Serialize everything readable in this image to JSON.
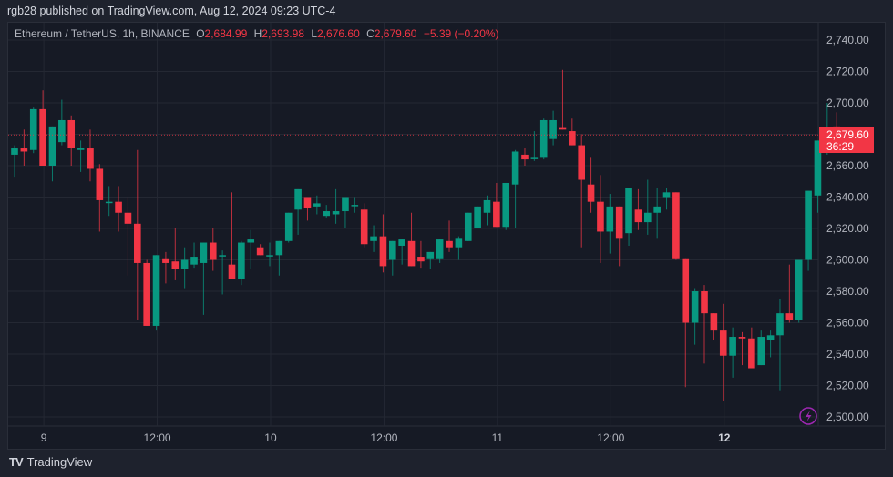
{
  "publish_line": "rgb28 published on TradingView.com, Aug 12, 2024 09:23 UTC-4",
  "legend": {
    "symbol": "Ethereum / TetherUS, 1h, BINANCE",
    "o_label": "O",
    "o": "2,684.99",
    "h_label": "H",
    "h": "2,693.98",
    "l_label": "L",
    "l": "2,676.60",
    "c_label": "C",
    "c": "2,679.60",
    "change": "−5.39 (−0.20%)"
  },
  "price_label": {
    "price": "2,679.60",
    "countdown": "36:29"
  },
  "footer": {
    "brand": "TradingView",
    "logo": "TV"
  },
  "colors": {
    "up": "#089981",
    "down": "#f23645",
    "bg": "#161a25",
    "grid": "#242833",
    "text": "#b2b5be",
    "accent": "#9c27b0"
  },
  "chart_data": {
    "type": "candlestick",
    "title": "Ethereum / TetherUS, 1h, BINANCE",
    "xlabel": "",
    "ylabel": "",
    "ylim": [
      2495,
      2750
    ],
    "y_ticks": [
      2740,
      2720,
      2700,
      2680,
      2660,
      2640,
      2620,
      2600,
      2580,
      2560,
      2540,
      2520,
      2500
    ],
    "y_tick_labels": [
      "2,740.00",
      "2,720.00",
      "2,700.00",
      "2,680.00",
      "2,660.00",
      "2,640.00",
      "2,620.00",
      "2,600.00",
      "2,580.00",
      "2,560.00",
      "2,540.00",
      "2,520.00",
      "2,500.00"
    ],
    "x_tick_labels": [
      {
        "label": "9",
        "index": 3
      },
      {
        "label": "12:00",
        "index": 15
      },
      {
        "label": "10",
        "index": 27
      },
      {
        "label": "12:00",
        "index": 39
      },
      {
        "label": "11",
        "index": 51
      },
      {
        "label": "12:00",
        "index": 63
      },
      {
        "label": "12",
        "index": 75,
        "bold": true
      }
    ],
    "current_price_line": 2679.6,
    "candles": [
      [
        2667,
        2673,
        2653,
        2671
      ],
      [
        2671,
        2683,
        2660,
        2669
      ],
      [
        2670,
        2697,
        2668,
        2696
      ],
      [
        2696,
        2708,
        2660,
        2660
      ],
      [
        2660,
        2680,
        2650,
        2685
      ],
      [
        2675,
        2702,
        2673,
        2689
      ],
      [
        2689,
        2692,
        2660,
        2671
      ],
      [
        2670,
        2676,
        2656,
        2671
      ],
      [
        2671,
        2683,
        2650,
        2658
      ],
      [
        2658,
        2661,
        2618,
        2638
      ],
      [
        2637,
        2647,
        2628,
        2637
      ],
      [
        2637,
        2647,
        2618,
        2630
      ],
      [
        2630,
        2640,
        2590,
        2623
      ],
      [
        2623,
        2670,
        2562,
        2598
      ],
      [
        2598,
        2600,
        2558,
        2558
      ],
      [
        2558,
        2603,
        2555,
        2603
      ],
      [
        2601,
        2605,
        2585,
        2598
      ],
      [
        2599,
        2620,
        2587,
        2594
      ],
      [
        2594,
        2608,
        2582,
        2600
      ],
      [
        2597,
        2611,
        2595,
        2602
      ],
      [
        2598,
        2610,
        2565,
        2611
      ],
      [
        2611,
        2620,
        2593,
        2600
      ],
      [
        2603,
        2606,
        2578,
        2603
      ],
      [
        2597,
        2643,
        2592,
        2588
      ],
      [
        2588,
        2612,
        2584,
        2611
      ],
      [
        2611,
        2619,
        2594,
        2613
      ],
      [
        2608,
        2610,
        2605,
        2603
      ],
      [
        2603,
        2611,
        2596,
        2603
      ],
      [
        2603,
        2612,
        2590,
        2612
      ],
      [
        2612,
        2629,
        2611,
        2630
      ],
      [
        2632,
        2641,
        2616,
        2645
      ],
      [
        2640,
        2640,
        2625,
        2633
      ],
      [
        2634,
        2641,
        2629,
        2636
      ],
      [
        2628,
        2635,
        2627,
        2631
      ],
      [
        2629,
        2645,
        2623,
        2631
      ],
      [
        2631,
        2640,
        2620,
        2640
      ],
      [
        2635,
        2640,
        2630,
        2635
      ],
      [
        2632,
        2636,
        2608,
        2610
      ],
      [
        2612,
        2622,
        2605,
        2615
      ],
      [
        2615,
        2629,
        2592,
        2596
      ],
      [
        2600,
        2609,
        2590,
        2612
      ],
      [
        2609,
        2612,
        2597,
        2613
      ],
      [
        2612,
        2630,
        2600,
        2596
      ],
      [
        2602,
        2612,
        2595,
        2599
      ],
      [
        2601,
        2604,
        2594,
        2605
      ],
      [
        2601,
        2611,
        2598,
        2613
      ],
      [
        2612,
        2625,
        2605,
        2608
      ],
      [
        2608,
        2615,
        2600,
        2614
      ],
      [
        2612,
        2630,
        2615,
        2630
      ],
      [
        2620,
        2634,
        2630,
        2634
      ],
      [
        2630,
        2641,
        2622,
        2638
      ],
      [
        2637,
        2649,
        2621,
        2621
      ],
      [
        2621,
        2636,
        2619,
        2649
      ],
      [
        2648,
        2670,
        2620,
        2669
      ],
      [
        2667,
        2671,
        2660,
        2664
      ],
      [
        2665,
        2682,
        2663,
        2665
      ],
      [
        2665,
        2690,
        2664,
        2689
      ],
      [
        2677,
        2695,
        2673,
        2689
      ],
      [
        2684,
        2721,
        2683,
        2683
      ],
      [
        2682,
        2690,
        2677,
        2673
      ],
      [
        2673,
        2680,
        2608,
        2651
      ],
      [
        2648,
        2665,
        2630,
        2637
      ],
      [
        2637,
        2654,
        2598,
        2618
      ],
      [
        2618,
        2642,
        2604,
        2634
      ],
      [
        2634,
        2630,
        2596,
        2614
      ],
      [
        2617,
        2638,
        2609,
        2646
      ],
      [
        2632,
        2645,
        2619,
        2624
      ],
      [
        2624,
        2651,
        2616,
        2630
      ],
      [
        2630,
        2646,
        2614,
        2634
      ],
      [
        2640,
        2646,
        2632,
        2643
      ],
      [
        2643,
        2641,
        2600,
        2601
      ],
      [
        2601,
        2591,
        2519,
        2560
      ],
      [
        2560,
        2582,
        2546,
        2580
      ],
      [
        2580,
        2584,
        2534,
        2566
      ],
      [
        2566,
        2564,
        2549,
        2555
      ],
      [
        2555,
        2572,
        2510,
        2539
      ],
      [
        2539,
        2557,
        2525,
        2551
      ],
      [
        2551,
        2554,
        2533,
        2550
      ],
      [
        2550,
        2557,
        2539,
        2531
      ],
      [
        2533,
        2555,
        2538,
        2551
      ],
      [
        2549,
        2555,
        2538,
        2552
      ],
      [
        2552,
        2575,
        2517,
        2566
      ],
      [
        2566,
        2597,
        2560,
        2562
      ],
      [
        2562,
        2598,
        2560,
        2600
      ],
      [
        2600,
        2641,
        2593,
        2644
      ],
      [
        2641,
        2671,
        2630,
        2676
      ],
      [
        2676,
        2700,
        2667,
        2684
      ],
      [
        2685,
        2694,
        2677,
        2680
      ]
    ]
  }
}
